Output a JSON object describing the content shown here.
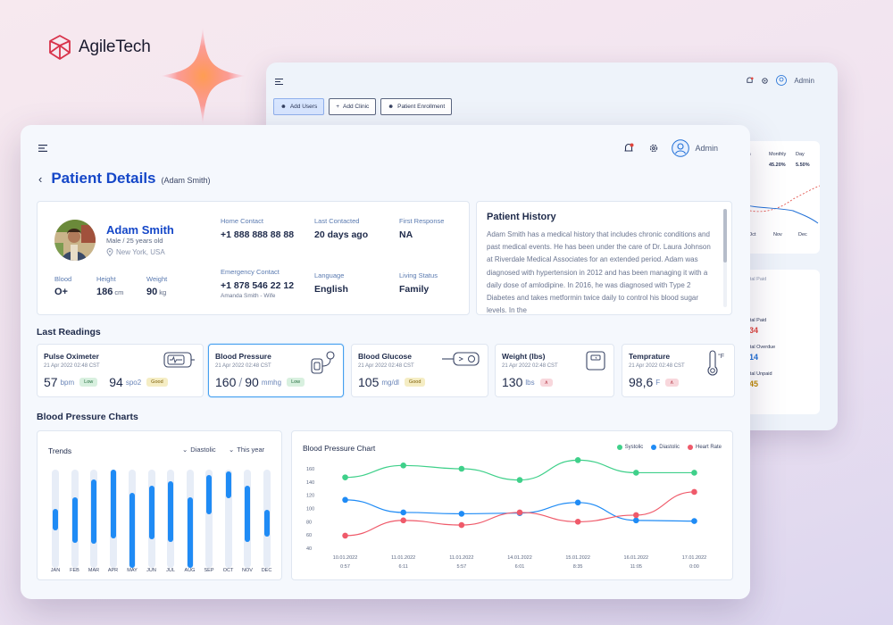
{
  "brand": {
    "name": "AgileTech"
  },
  "back_panel": {
    "admin": "Admin",
    "tabs": [
      "Add Users",
      "Add Clinic",
      "Patient Enrollment"
    ],
    "period_labels": [
      "onth",
      "Monthly",
      "Day"
    ],
    "period_values": [
      "45.20%",
      "5.50%"
    ],
    "mini_axis": [
      "Oct",
      "Nov",
      "Dec"
    ],
    "stat_note": "Total Paid",
    "stats": [
      {
        "label": "Total Paid",
        "value": "234",
        "color": "#e0443c"
      },
      {
        "label": "Total Overdue",
        "value": "514",
        "color": "#1f6fd6"
      },
      {
        "label": "Total Unpaid",
        "value": "345",
        "color": "#c08a00"
      }
    ]
  },
  "header": {
    "admin_label": "Admin"
  },
  "page": {
    "title": "Patient Details",
    "subtitle": "(Adam Smith)"
  },
  "patient": {
    "name": "Adam Smith",
    "meta": "Male / 25 years old",
    "location": "New York, USA",
    "blood_label": "Blood",
    "blood_value": "O+",
    "height_label": "Height",
    "height_value": "186",
    "height_unit": "cm",
    "weight_label": "Weight",
    "weight_value": "90",
    "weight_unit": "kg",
    "home_contact_label": "Home Contact",
    "home_contact": "+1 888 888 88 88",
    "last_contacted_label": "Last Contacted",
    "last_contacted": "20 days ago",
    "first_response_label": "First Response",
    "first_response": "NA",
    "emergency_label": "Emergency Contact",
    "emergency_contact": "+1 878 546 22 12",
    "emergency_name": "Amanda Smith - Wife",
    "language_label": "Language",
    "language": "English",
    "living_label": "Living Status",
    "living": "Family"
  },
  "history": {
    "title": "Patient History",
    "text": "Adam Smith has a medical history that includes chronic conditions and past medical events. He has been under the care of Dr. Laura Johnson at Riverdale Medical Associates for an extended period. Adam was diagnosed with hypertension in 2012 and has been managing it with a daily dose of amlodipine. In 2016, he was diagnosed with Type 2 Diabetes and takes metformin twice daily to control his blood sugar levels. In the"
  },
  "readings": {
    "title": "Last Readings",
    "items": [
      {
        "title": "Pulse Oximeter",
        "time": "21 Apr 2022   02:48   CST",
        "v1": "57",
        "u1": "bpm",
        "b1": "Low",
        "v2": "94",
        "u2": "spo2",
        "b2": "Good"
      },
      {
        "title": "Blood Pressure",
        "time": "21 Apr 2022   02:48   CST",
        "v1": "160",
        "sep": "/",
        "v2": "90",
        "u1": "mmhg",
        "b1": "Low"
      },
      {
        "title": "Blood Glucose",
        "time": "21 Apr 2022   02:48   CST",
        "v1": "105",
        "u1": "mg/dl",
        "b1": "Good"
      },
      {
        "title": "Weight (lbs)",
        "time": "21 Apr 2022   02:48   CST",
        "v1": "130",
        "u1": "lbs",
        "b1": "∧"
      },
      {
        "title": "Temprature",
        "time": "21 Apr 2022   02:48   CST",
        "v1": "98,6",
        "u1": "F",
        "b1": "∧",
        "icon_unit": "°F"
      }
    ]
  },
  "bp_section": {
    "title": "Blood Pressure Charts"
  },
  "trends": {
    "title": "Trends",
    "dropdown1": "Diastolic",
    "dropdown2": "This year",
    "months": [
      "JAN",
      "FEB",
      "MAR",
      "APR",
      "MAY",
      "JUN",
      "JUL",
      "AUG",
      "SEP",
      "OCT",
      "NOV",
      "DEC"
    ],
    "ranges": [
      [
        60,
        38
      ],
      [
        72,
        25
      ],
      [
        90,
        25
      ],
      [
        100,
        30
      ],
      [
        76,
        0
      ],
      [
        84,
        29
      ],
      [
        88,
        26
      ],
      [
        72,
        0
      ],
      [
        95,
        55
      ],
      [
        98,
        71
      ],
      [
        84,
        26
      ],
      [
        59,
        32
      ]
    ]
  },
  "chart_data": {
    "type": "line",
    "title": "Blood Pressure Chart",
    "x": [
      "10.01.2022\n0:57",
      "11.01.2022\n6:11",
      "11.01.2022\n5:57",
      "14.01.2022\n6:01",
      "15.01.2022\n8:35",
      "16.01.2022\n11:05",
      "17.01.2022\n0:00"
    ],
    "ylim": [
      40,
      160
    ],
    "yticks": [
      40,
      60,
      80,
      100,
      120,
      140,
      160
    ],
    "grid": false,
    "legend": "top-right",
    "series": [
      {
        "name": "Systolic",
        "color": "#3fd08a",
        "values": [
          147,
          165,
          160,
          143,
          173,
          154,
          154
        ],
        "first_x": 0.25
      },
      {
        "name": "Diastolic",
        "color": "#1f8bf5",
        "values": [
          113,
          94,
          92,
          93,
          109,
          82,
          81
        ],
        "first_x": 0.25
      },
      {
        "name": "Heart Rate",
        "color": "#ef5a6a",
        "values": [
          59,
          82,
          75,
          94,
          80,
          90,
          125
        ],
        "first_x": 0.25
      }
    ]
  }
}
